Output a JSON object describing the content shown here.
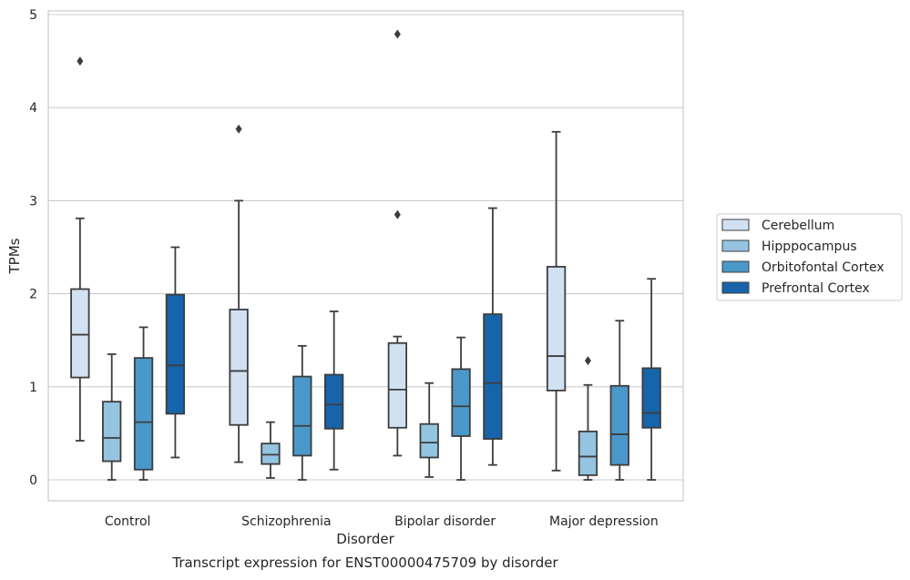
{
  "chart_data": {
    "type": "box",
    "title": "Transcript expression for ENST00000475709 by disorder",
    "xlabel": "Disorder",
    "ylabel": "TPMs",
    "categories": [
      "Control",
      "Schizophrenia",
      "Bipolar disorder",
      "Major depression"
    ],
    "ylim": [
      -0.22,
      5.05
    ],
    "yticks": [
      0,
      1,
      2,
      3,
      4,
      5
    ],
    "grid": true,
    "legend_position": "right",
    "series": [
      {
        "name": "Cerebellum",
        "color": "#d0e1f2",
        "boxes": [
          {
            "whisker_low": 0.42,
            "q1": 1.1,
            "median": 1.56,
            "q3": 2.05,
            "whisker_high": 2.81,
            "outliers": [
              4.5
            ]
          },
          {
            "whisker_low": 0.19,
            "q1": 0.59,
            "median": 1.17,
            "q3": 1.83,
            "whisker_high": 3.0,
            "outliers": [
              3.77
            ]
          },
          {
            "whisker_low": 0.26,
            "q1": 0.56,
            "median": 0.97,
            "q3": 1.47,
            "whisker_high": 1.54,
            "outliers": [
              2.85,
              4.79
            ]
          },
          {
            "whisker_low": 0.1,
            "q1": 0.96,
            "median": 1.33,
            "q3": 2.29,
            "whisker_high": 3.74,
            "outliers": []
          }
        ]
      },
      {
        "name": "Hipppocampus",
        "color": "#94c4df",
        "boxes": [
          {
            "whisker_low": 0.0,
            "q1": 0.2,
            "median": 0.45,
            "q3": 0.84,
            "whisker_high": 1.35,
            "outliers": []
          },
          {
            "whisker_low": 0.02,
            "q1": 0.17,
            "median": 0.27,
            "q3": 0.39,
            "whisker_high": 0.62,
            "outliers": []
          },
          {
            "whisker_low": 0.03,
            "q1": 0.24,
            "median": 0.4,
            "q3": 0.6,
            "whisker_high": 1.04,
            "outliers": []
          },
          {
            "whisker_low": 0.0,
            "q1": 0.05,
            "median": 0.25,
            "q3": 0.52,
            "whisker_high": 1.02,
            "outliers": [
              1.28
            ]
          }
        ]
      },
      {
        "name": "Orbitofontal Cortex",
        "color": "#4a98c9",
        "boxes": [
          {
            "whisker_low": 0.0,
            "q1": 0.11,
            "median": 0.62,
            "q3": 1.31,
            "whisker_high": 1.64,
            "outliers": []
          },
          {
            "whisker_low": 0.0,
            "q1": 0.26,
            "median": 0.58,
            "q3": 1.11,
            "whisker_high": 1.44,
            "outliers": []
          },
          {
            "whisker_low": 0.0,
            "q1": 0.47,
            "median": 0.79,
            "q3": 1.19,
            "whisker_high": 1.53,
            "outliers": []
          },
          {
            "whisker_low": 0.0,
            "q1": 0.16,
            "median": 0.49,
            "q3": 1.01,
            "whisker_high": 1.71,
            "outliers": []
          }
        ]
      },
      {
        "name": "Prefrontal Cortex",
        "color": "#1764ab",
        "boxes": [
          {
            "whisker_low": 0.24,
            "q1": 0.71,
            "median": 1.23,
            "q3": 1.99,
            "whisker_high": 2.5,
            "outliers": []
          },
          {
            "whisker_low": 0.11,
            "q1": 0.55,
            "median": 0.81,
            "q3": 1.13,
            "whisker_high": 1.81,
            "outliers": []
          },
          {
            "whisker_low": 0.16,
            "q1": 0.44,
            "median": 1.04,
            "q3": 1.78,
            "whisker_high": 2.92,
            "outliers": []
          },
          {
            "whisker_low": 0.0,
            "q1": 0.56,
            "median": 0.72,
            "q3": 1.2,
            "whisker_high": 2.16,
            "outliers": []
          }
        ]
      }
    ]
  }
}
